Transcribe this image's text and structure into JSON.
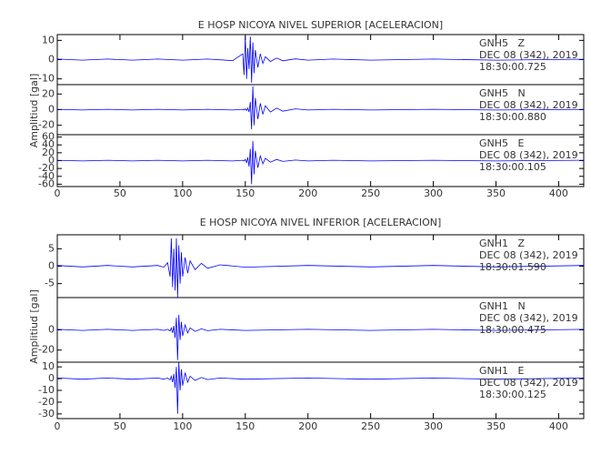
{
  "chart_data": [
    {
      "type": "line",
      "title": "E HOSP NICOYA NIVEL SUPERIOR [ACELERACION]",
      "y_label": "Amplitiud [gal]",
      "xlim": [
        0,
        420
      ],
      "xticks": [
        0,
        50,
        100,
        150,
        200,
        250,
        300,
        350,
        400
      ],
      "x": [
        0,
        20,
        40,
        60,
        80,
        100,
        120,
        140,
        148,
        149,
        150,
        151,
        152,
        153,
        154,
        155,
        156,
        157,
        158,
        160,
        162,
        164,
        166,
        170,
        175,
        180,
        190,
        200,
        220,
        250,
        300,
        350,
        420
      ],
      "series": [
        {
          "name": "GNH5   Z",
          "date": "DEC 08 (342), 2019",
          "time": "18:30:00.725",
          "color": "#0000ff",
          "ylim": [
            -13,
            13
          ],
          "yticks": [
            -10,
            0,
            10
          ],
          "values": [
            0.3,
            -0.3,
            0.3,
            -0.3,
            0.3,
            -0.3,
            0.3,
            -0.5,
            3,
            -8,
            12,
            -10,
            6,
            -5,
            12,
            -12,
            9,
            -7,
            5,
            -4,
            3,
            -2,
            1.5,
            -1,
            0.8,
            -0.6,
            0.4,
            -0.3,
            0.3,
            -0.3,
            0.3,
            -0.3,
            0.2
          ]
        },
        {
          "name": "GNH5   N",
          "date": "DEC 08 (342), 2019",
          "time": "18:30:00.880",
          "color": "#0000ff",
          "ylim": [
            -32,
            32
          ],
          "yticks": [
            -20,
            0,
            20
          ],
          "values": [
            0.5,
            -0.5,
            0.5,
            -0.5,
            0.5,
            -0.5,
            0.5,
            -0.5,
            0.5,
            -0.5,
            1,
            -1,
            2,
            -3,
            10,
            -25,
            30,
            -20,
            15,
            -12,
            8,
            -6,
            5,
            -3,
            2,
            -2,
            1,
            -0.5,
            0.5,
            -0.5,
            0.5,
            -0.5,
            0.3
          ]
        },
        {
          "name": "GNH5   E",
          "date": "DEC 08 (342), 2019",
          "time": "18:30:00.105",
          "color": "#0000ff",
          "ylim": [
            -66,
            66
          ],
          "yticks": [
            -60,
            -40,
            -20,
            0,
            20,
            40,
            60
          ],
          "values": [
            1,
            -1,
            1,
            -1,
            1,
            -1,
            1,
            -1,
            1,
            -1,
            3,
            -5,
            8,
            -15,
            30,
            -60,
            50,
            -35,
            25,
            -18,
            12,
            -8,
            6,
            -4,
            3,
            -2,
            1.5,
            -1,
            1,
            -1,
            1,
            -1,
            1
          ]
        }
      ]
    },
    {
      "type": "line",
      "title": "E HOSP NICOYA NIVEL INFERIOR [ACELERACION]",
      "y_label": "Amplitiud [gal]",
      "xlim": [
        0,
        420
      ],
      "xticks": [
        0,
        50,
        100,
        150,
        200,
        250,
        300,
        350,
        400
      ],
      "x": [
        0,
        20,
        40,
        60,
        80,
        85,
        88,
        90,
        91,
        92,
        93,
        94,
        95,
        96,
        97,
        98,
        99,
        100,
        102,
        104,
        106,
        110,
        115,
        120,
        130,
        150,
        200,
        250,
        300,
        350,
        420
      ],
      "series": [
        {
          "name": "GNH1   Z",
          "date": "DEC 08 (342), 2019",
          "time": "18:30:01.590",
          "color": "#0000ff",
          "ylim": [
            -9,
            9
          ],
          "yticks": [
            -5,
            0,
            5
          ],
          "values": [
            0.2,
            -0.2,
            0.2,
            -0.2,
            0.2,
            -0.3,
            1,
            -3,
            8,
            -6,
            5,
            -7,
            8,
            -9,
            6,
            -5,
            4,
            -3,
            2.5,
            -2,
            1.5,
            -1,
            0.8,
            -0.6,
            0.4,
            -0.3,
            0.2,
            -0.2,
            0.2,
            -0.2,
            0.2
          ]
        },
        {
          "name": "GNH1   N",
          "date": "DEC 08 (342), 2019",
          "time": "18:30:00.475",
          "color": "#0000ff",
          "ylim": [
            -32,
            32
          ],
          "yticks": [
            -20,
            0
          ],
          "values": [
            0.5,
            -0.5,
            0.5,
            -0.5,
            0.5,
            -0.5,
            0.5,
            -1,
            2,
            -3,
            4,
            -8,
            12,
            -30,
            15,
            -10,
            8,
            -6,
            5,
            -3,
            2,
            -1.5,
            1,
            -0.8,
            0.5,
            -0.5,
            0.5,
            -0.5,
            0.5,
            -0.5,
            0.5
          ]
        },
        {
          "name": "GNH1   E",
          "date": "DEC 08 (342), 2019",
          "time": "18:30:00.125",
          "color": "#0000ff",
          "ylim": [
            -34,
            14
          ],
          "yticks": [
            -30,
            -20,
            -10,
            0,
            10
          ],
          "values": [
            0.5,
            -0.5,
            0.5,
            -0.5,
            0.5,
            -0.5,
            0.5,
            -1,
            2,
            -3,
            4,
            -8,
            10,
            -30,
            14,
            -10,
            8,
            -6,
            5,
            -3,
            2,
            -1.5,
            1,
            -0.8,
            0.5,
            -0.5,
            0.5,
            -0.5,
            0.5,
            -0.5,
            0.5
          ]
        }
      ]
    }
  ]
}
